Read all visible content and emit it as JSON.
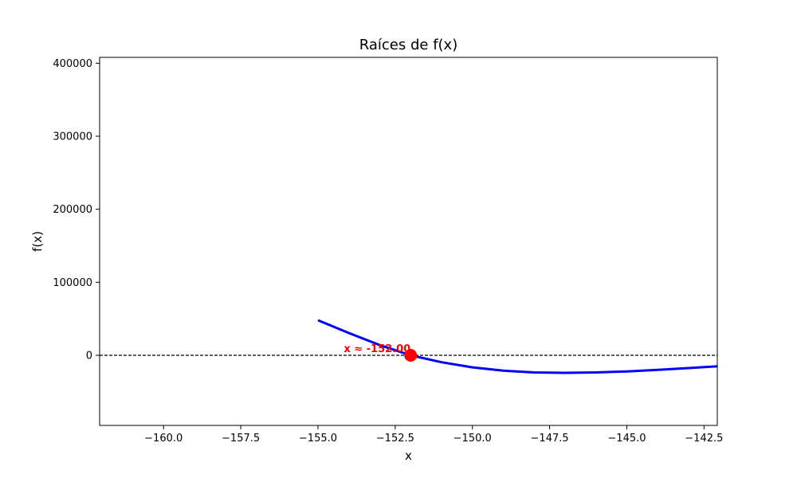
{
  "chart_data": {
    "type": "line",
    "title": "Raíces de f(x)",
    "xlabel": "x",
    "ylabel": "f(x)",
    "xlim": [
      -162.07,
      -142.07
    ],
    "ylim": [
      -96000,
      408000
    ],
    "x_ticks": [
      -160.0,
      -157.5,
      -155.0,
      -152.5,
      -150.0,
      -147.5,
      -145.0,
      -142.5
    ],
    "x_tick_labels": [
      "−160.0",
      "−157.5",
      "−155.0",
      "−152.5",
      "−150.0",
      "−147.5",
      "−145.0",
      "−142.5"
    ],
    "y_ticks": [
      0,
      100000,
      200000,
      300000,
      400000
    ],
    "y_tick_labels": [
      "0",
      "100000",
      "200000",
      "300000",
      "400000"
    ],
    "grid": false,
    "series": [
      {
        "color": "#0000ff",
        "x": [
          -155.0,
          -154.0,
          -153.0,
          -152.0,
          -151.0,
          -150.0,
          -149.0,
          -148.0,
          -147.0,
          -146.0,
          -145.0,
          -144.0,
          -143.0,
          -142.07
        ],
        "y": [
          48000,
          30500,
          14000,
          0,
          -9500,
          -16500,
          -21000,
          -23500,
          -24000,
          -23500,
          -22000,
          -20000,
          -17500,
          -15000
        ]
      }
    ],
    "baseline": {
      "y": 0,
      "style": "dashed",
      "color": "#000000"
    },
    "roots": [
      {
        "x": -152.0,
        "y": 0,
        "label": "x ≈ -152.00",
        "color": "#ff0000"
      }
    ]
  }
}
